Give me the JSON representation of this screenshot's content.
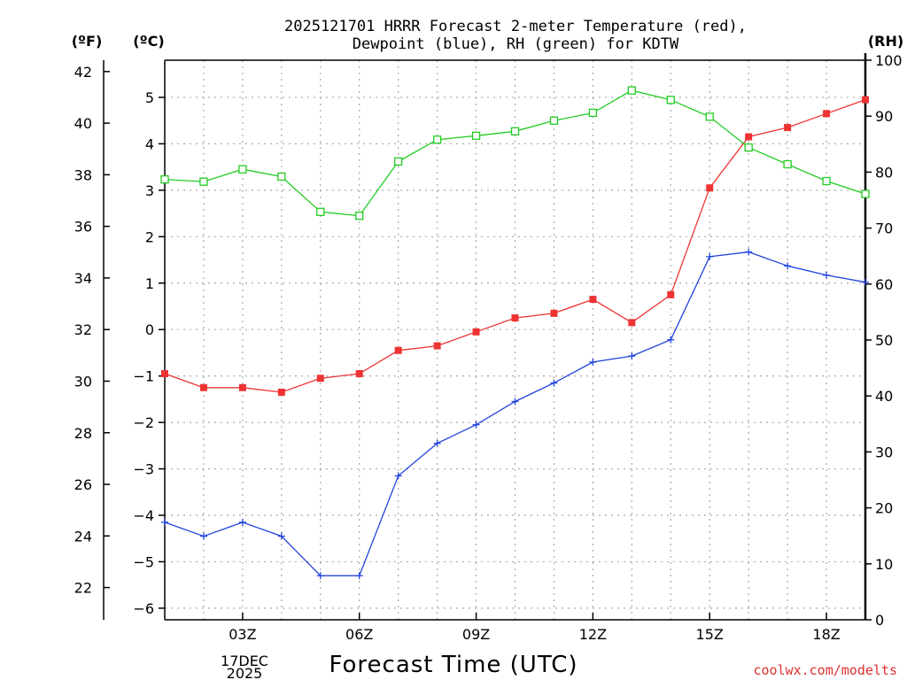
{
  "chart_data": {
    "type": "line",
    "title_line1": "2025121701 HRRR Forecast 2-meter Temperature (red),",
    "title_line2": "Dewpoint (blue), RH (green) for KDTW",
    "xlabel": "Forecast Time (UTC)",
    "credit": "coolwx.com/modelts",
    "units": {
      "fahrenheit": "(ºF)",
      "celsius": "(ºC)",
      "rh": "(RH)"
    },
    "x_hours": [
      1,
      2,
      3,
      4,
      5,
      6,
      7,
      8,
      9,
      10,
      11,
      12,
      13,
      14,
      15,
      16,
      17,
      18,
      19
    ],
    "xlim": [
      1,
      19
    ],
    "x_ticks": [
      {
        "hour": 3,
        "label": "03Z"
      },
      {
        "hour": 6,
        "label": "06Z"
      },
      {
        "hour": 9,
        "label": "09Z"
      },
      {
        "hour": 12,
        "label": "12Z"
      },
      {
        "hour": 15,
        "label": "15Z"
      },
      {
        "hour": 18,
        "label": "18Z"
      }
    ],
    "date_label": [
      "17DEC",
      "2025"
    ],
    "celsius_axis": {
      "ylim": [
        -6.25,
        5.8
      ],
      "ticks": [
        -6,
        -5,
        -4,
        -3,
        -2,
        -1,
        0,
        1,
        2,
        3,
        4,
        5
      ]
    },
    "fahrenheit_axis": {
      "ticks": [
        22,
        24,
        26,
        28,
        30,
        32,
        34,
        36,
        38,
        40,
        42
      ]
    },
    "rh_axis": {
      "ylim": [
        0,
        100
      ],
      "ticks": [
        0,
        10,
        20,
        30,
        40,
        50,
        60,
        70,
        80,
        90,
        100
      ]
    },
    "series": [
      {
        "name": "Temperature",
        "units": "C",
        "axis": "celsius",
        "color": "#ee3333",
        "marker": "square-filled",
        "values": [
          -0.95,
          -1.25,
          -1.25,
          -1.35,
          -1.05,
          -0.95,
          -0.45,
          -0.35,
          -0.05,
          0.25,
          0.35,
          0.65,
          0.15,
          0.75,
          3.05,
          4.15,
          4.35,
          4.65,
          4.95
        ]
      },
      {
        "name": "Dewpoint",
        "units": "C",
        "axis": "celsius",
        "color": "#2244dd",
        "marker": "plus",
        "values": [
          -4.15,
          -4.45,
          -4.15,
          -4.45,
          -5.3,
          -5.3,
          -3.15,
          -2.45,
          -2.05,
          -1.55,
          -1.15,
          -0.7,
          -0.57,
          -0.22,
          1.57,
          1.67,
          1.37,
          1.17,
          1.02
        ]
      },
      {
        "name": "RH",
        "units": "%",
        "axis": "rh",
        "color": "#22cc22",
        "marker": "square-open",
        "values": [
          78.7,
          78.3,
          80.5,
          79.2,
          72.9,
          72.2,
          81.9,
          85.8,
          86.5,
          87.3,
          89.2,
          90.6,
          94.6,
          92.9,
          89.9,
          84.4,
          81.4,
          78.4,
          76.1
        ]
      }
    ]
  }
}
